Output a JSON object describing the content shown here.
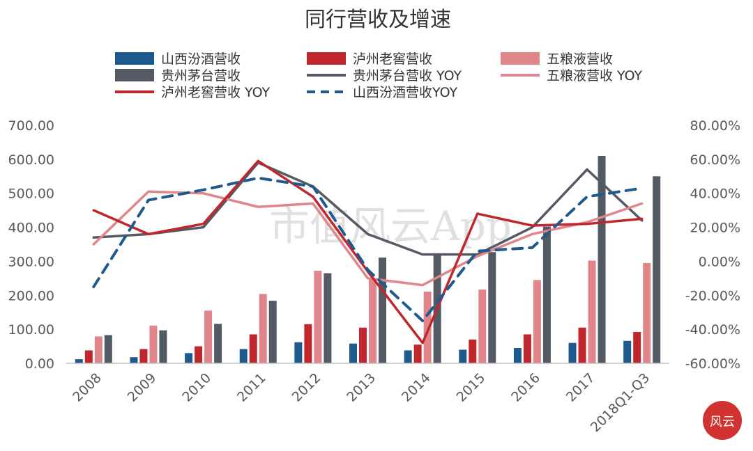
{
  "chart_data": {
    "type": "bar",
    "title": "同行营收及增速",
    "categories": [
      "2008",
      "2009",
      "2010",
      "2011",
      "2012",
      "2013",
      "2014",
      "2015",
      "2016",
      "2017",
      "2018Q1-Q3"
    ],
    "y_left": {
      "ticks": [
        "0.00",
        "100.00",
        "200.00",
        "300.00",
        "400.00",
        "500.00",
        "600.00",
        "700.00"
      ],
      "ylim": [
        0,
        700
      ]
    },
    "y_right": {
      "ticks": [
        "-60.00%",
        "-40.00%",
        "-20.00%",
        "0.00%",
        "20.00%",
        "40.00%",
        "60.00%",
        "80.00%"
      ],
      "ylim": [
        -60,
        80
      ]
    },
    "bar_series": [
      {
        "name": "山西汾酒营收",
        "color": "#1f5a8e",
        "values": [
          12,
          18,
          30,
          42,
          62,
          58,
          38,
          40,
          45,
          60,
          66
        ]
      },
      {
        "name": "泸州老窖营收",
        "color": "#c0272d",
        "values": [
          38,
          42,
          50,
          85,
          115,
          105,
          55,
          70,
          85,
          105,
          92
        ]
      },
      {
        "name": "五粮液营收",
        "color": "#e0858a",
        "values": [
          79,
          111,
          155,
          204,
          272,
          248,
          211,
          217,
          245,
          302,
          295
        ]
      },
      {
        "name": "贵州茅台营收",
        "color": "#545a64",
        "values": [
          83,
          97,
          116,
          184,
          265,
          311,
          322,
          327,
          402,
          610,
          550
        ]
      }
    ],
    "line_series": [
      {
        "name": "贵州茅台营收 YOY",
        "color": "#545a64",
        "dash": false,
        "values": [
          14,
          16,
          20,
          58,
          44,
          16,
          4,
          4,
          20,
          54,
          24
        ]
      },
      {
        "name": "五粮液营收 YOY",
        "color": "#e0858a",
        "dash": false,
        "values": [
          10,
          41,
          40,
          32,
          34,
          -10,
          -14,
          3,
          16,
          23,
          34
        ]
      },
      {
        "name": "泸州老窖营收 YOY",
        "color": "#c0272d",
        "dash": false,
        "values": [
          30,
          16,
          22,
          59,
          38,
          -6,
          -48,
          28,
          21,
          22,
          25
        ]
      },
      {
        "name": "山西汾酒营收YOY",
        "color": "#1f5a8e",
        "dash": true,
        "values": [
          -15,
          36,
          42,
          49,
          44,
          -5,
          -35,
          6,
          8,
          38,
          43
        ]
      }
    ],
    "legend_placement": "top",
    "grid": false
  },
  "watermark": "市值风云App",
  "logo_text": "风云"
}
